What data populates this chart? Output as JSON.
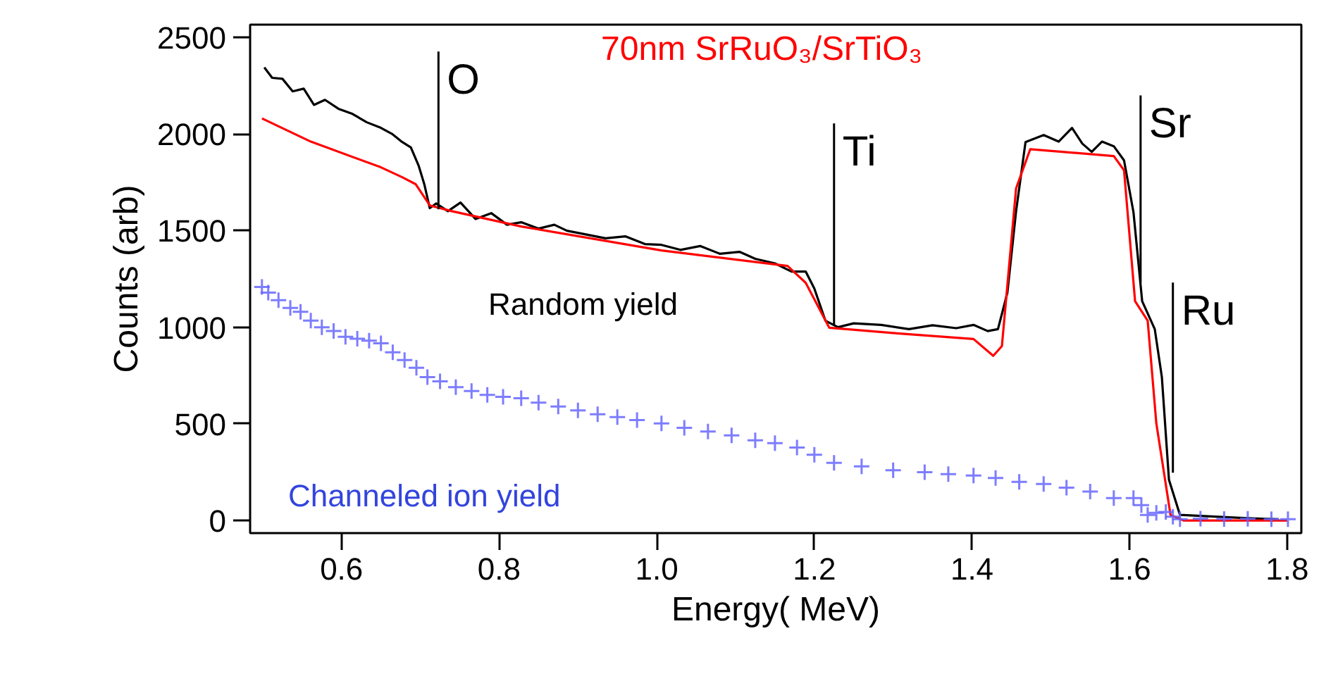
{
  "chart_data": {
    "type": "line",
    "xlabel": "Energy( MeV)",
    "ylabel": "Counts (arb)",
    "xlim": [
      0.484,
      1.818
    ],
    "ylim": [
      -65,
      2565
    ],
    "xticks": [
      0.6,
      0.8,
      {
        "value": 1.0,
        "label": "1.0"
      },
      1.2,
      1.4,
      1.6,
      1.8
    ],
    "yticks": [
      0,
      500,
      1000,
      1500,
      2000,
      2500
    ],
    "grid": false,
    "legend": false,
    "series": [
      {
        "name": "Random yield",
        "color": "#000000",
        "x": [
          0.502,
          0.512,
          0.525,
          0.538,
          0.552,
          0.565,
          0.579,
          0.596,
          0.614,
          0.632,
          0.65,
          0.664,
          0.677,
          0.688,
          0.698,
          0.705,
          0.712,
          0.72,
          0.735,
          0.751,
          0.77,
          0.79,
          0.81,
          0.828,
          0.85,
          0.87,
          0.886,
          0.91,
          0.935,
          0.96,
          0.985,
          1.006,
          1.03,
          1.055,
          1.08,
          1.105,
          1.125,
          1.15,
          1.171,
          1.189,
          1.2,
          1.214,
          1.23,
          1.25,
          1.285,
          1.32,
          1.35,
          1.38,
          1.402,
          1.42,
          1.433,
          1.445,
          1.456,
          1.468,
          1.491,
          1.51,
          1.527,
          1.54,
          1.552,
          1.565,
          1.58,
          1.593,
          1.605,
          1.616,
          1.632,
          1.641,
          1.65,
          1.664,
          1.7,
          1.75,
          1.789
        ],
        "values": [
          2344,
          2290,
          2285,
          2220,
          2234,
          2150,
          2176,
          2130,
          2103,
          2060,
          2031,
          2000,
          1958,
          1930,
          1834,
          1740,
          1616,
          1640,
          1600,
          1645,
          1560,
          1590,
          1530,
          1543,
          1510,
          1530,
          1499,
          1480,
          1460,
          1470,
          1430,
          1426,
          1400,
          1420,
          1380,
          1390,
          1354,
          1330,
          1288,
          1288,
          1200,
          1034,
          1000,
          1020,
          1012,
          990,
          1010,
          995,
          1012,
          980,
          990,
          1179,
          1600,
          1958,
          1994,
          1960,
          2031,
          1950,
          1907,
          1960,
          1936,
          1863,
          1594,
          1135,
          990,
          742,
          211,
          29,
          22,
          12,
          7
        ]
      },
      {
        "name": "70nm SrRuO₃/SrTiO₃",
        "color": "#ff0000",
        "x": [
          0.499,
          0.561,
          0.65,
          0.677,
          0.694,
          0.712,
          0.74,
          0.828,
          1.006,
          1.166,
          1.189,
          1.219,
          1.3,
          1.402,
          1.427,
          1.438,
          1.456,
          1.474,
          1.58,
          1.593,
          1.607,
          1.623,
          1.634,
          1.652,
          1.669,
          1.8
        ],
        "values": [
          2080,
          1960,
          1827,
          1776,
          1740,
          1630,
          1600,
          1521,
          1397,
          1317,
          1230,
          997,
          970,
          939,
          852,
          902,
          1718,
          1921,
          1885,
          1812,
          1135,
          1034,
          502,
          29,
          0,
          0
        ]
      },
      {
        "name": "Channeled ion yield",
        "color": "#6666ff",
        "type": "scatter",
        "marker": "cross",
        "x": [
          0.499,
          0.507,
          0.52,
          0.535,
          0.548,
          0.561,
          0.575,
          0.59,
          0.605,
          0.62,
          0.635,
          0.65,
          0.665,
          0.68,
          0.695,
          0.709,
          0.725,
          0.745,
          0.765,
          0.785,
          0.805,
          0.828,
          0.85,
          0.875,
          0.9,
          0.925,
          0.95,
          0.975,
          1.006,
          1.035,
          1.065,
          1.095,
          1.125,
          1.15,
          1.178,
          1.2,
          1.225,
          1.26,
          1.3,
          1.34,
          1.37,
          1.402,
          1.43,
          1.46,
          1.491,
          1.52,
          1.55,
          1.58,
          1.605,
          1.615,
          1.623,
          1.634,
          1.646,
          1.655,
          1.664,
          1.69,
          1.72,
          1.75,
          1.78,
          1.801
        ],
        "values": [
          1208,
          1179,
          1140,
          1100,
          1080,
          1034,
          1000,
          980,
          950,
          940,
          930,
          917,
          870,
          830,
          790,
          742,
          720,
          690,
          670,
          650,
          640,
          633,
          610,
          590,
          570,
          550,
          535,
          520,
          502,
          480,
          460,
          440,
          415,
          400,
          378,
          340,
          298,
          280,
          260,
          250,
          240,
          233,
          220,
          200,
          189,
          170,
          150,
          116,
          116,
          80,
          29,
          40,
          44,
          20,
          7,
          10,
          8,
          9,
          7,
          7
        ]
      }
    ],
    "annotations": [
      {
        "text": "O",
        "x": 0.723,
        "y": 1610
      },
      {
        "text": "Ti",
        "x": 1.225,
        "y": 1012
      },
      {
        "text": "Sr",
        "x": 1.614,
        "y": 1230
      },
      {
        "text": "Ru",
        "x": 1.655,
        "y": 247
      }
    ]
  }
}
